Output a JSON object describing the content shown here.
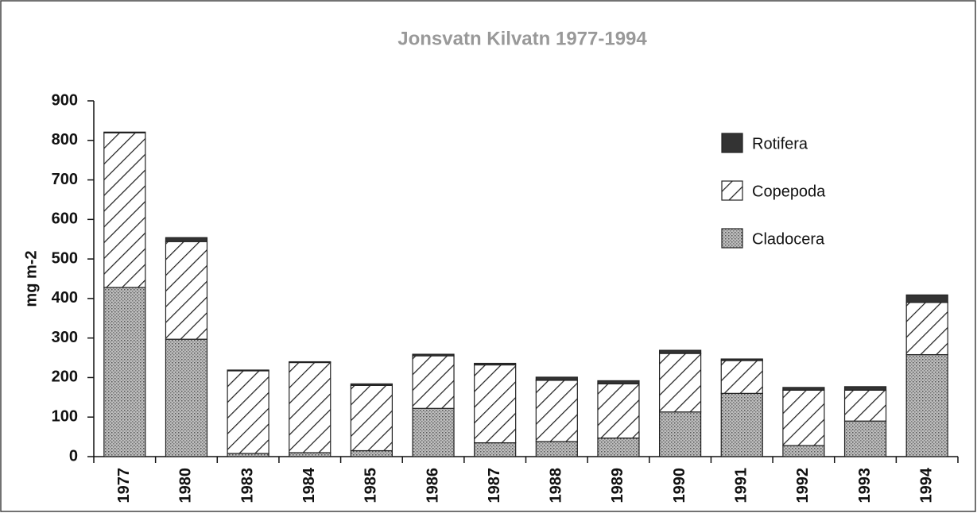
{
  "chart_data": {
    "type": "stacked_bar",
    "title": "Jonsvatn Kilvatn 1977-1994",
    "y_label": "mg m-2",
    "categories": [
      "1977",
      "1980",
      "1983",
      "1984",
      "1985",
      "1986",
      "1987",
      "1988",
      "1989",
      "1990",
      "1991",
      "1992",
      "1993",
      "1994"
    ],
    "series": [
      {
        "name": "Cladocera",
        "color": "#888888",
        "pattern": "dots",
        "values": [
          428,
          297,
          8,
          10,
          15,
          122,
          35,
          38,
          47,
          113,
          160,
          28,
          90,
          258
        ]
      },
      {
        "name": "Copepoda",
        "color": "#222222",
        "pattern": "hatch",
        "values": [
          391,
          247,
          209,
          228,
          165,
          133,
          197,
          155,
          137,
          148,
          83,
          140,
          78,
          132
        ]
      },
      {
        "name": "Rotifera",
        "color": "#333333",
        "pattern": "solid",
        "values": [
          2,
          10,
          2,
          2,
          4,
          4,
          4,
          8,
          8,
          8,
          4,
          7,
          9,
          19
        ]
      }
    ],
    "ylim": [
      0,
      900
    ],
    "yticks": [
      0,
      100,
      200,
      300,
      400,
      500,
      600,
      700,
      800,
      900
    ],
    "legend": "upper right",
    "legend_order": "reversed"
  }
}
